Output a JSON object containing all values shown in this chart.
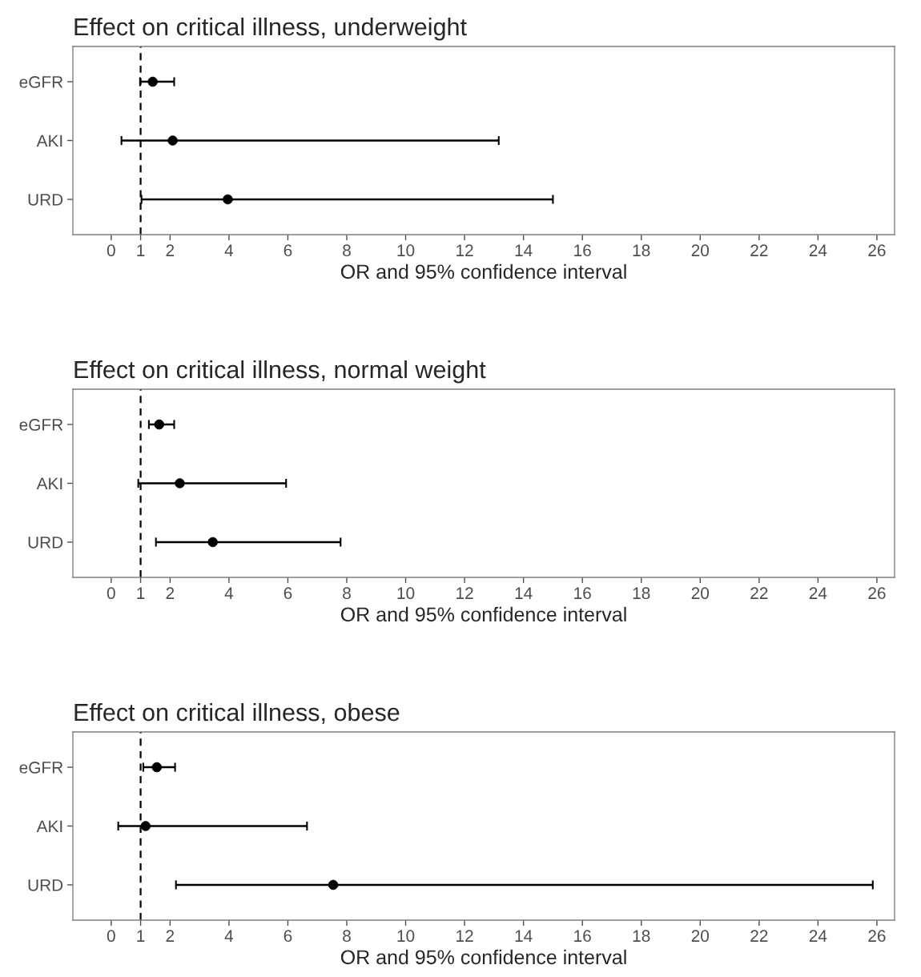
{
  "chart_data": [
    {
      "type": "scatter",
      "orientation": "horizontal",
      "title": "Effect on critical illness, underweight",
      "xlabel": "OR and 95% confidence interval",
      "categories": [
        "eGFR",
        "AKI",
        "URD"
      ],
      "values": [
        1.41,
        2.09,
        3.96
      ],
      "errors": [
        [
          0.98,
          2.14
        ],
        [
          0.35,
          13.16
        ],
        [
          1.03,
          15.0
        ]
      ],
      "color": "#000000",
      "marker": "circle",
      "xlim": [
        -1.3,
        26.6
      ],
      "xticks": [
        0,
        1,
        2,
        4,
        6,
        8,
        10,
        12,
        14,
        16,
        18,
        20,
        22,
        24,
        26
      ],
      "ref_lines": [
        {
          "axis": "x",
          "value": 1,
          "line_style": "dashed",
          "color": "#000000"
        }
      ],
      "grid": false
    },
    {
      "type": "scatter",
      "orientation": "horizontal",
      "title": "Effect on critical illness, normal weight",
      "xlabel": "OR and 95% confidence interval",
      "categories": [
        "eGFR",
        "AKI",
        "URD"
      ],
      "values": [
        1.63,
        2.33,
        3.45
      ],
      "errors": [
        [
          1.28,
          2.14
        ],
        [
          0.92,
          5.94
        ],
        [
          1.52,
          7.79
        ]
      ],
      "color": "#000000",
      "marker": "circle",
      "xlim": [
        -1.3,
        26.6
      ],
      "xticks": [
        0,
        1,
        2,
        4,
        6,
        8,
        10,
        12,
        14,
        16,
        18,
        20,
        22,
        24,
        26
      ],
      "ref_lines": [
        {
          "axis": "x",
          "value": 1,
          "line_style": "dashed",
          "color": "#000000"
        }
      ],
      "grid": false
    },
    {
      "type": "scatter",
      "orientation": "horizontal",
      "title": "Effect on critical illness, obese",
      "xlabel": "OR and 95% confidence interval",
      "categories": [
        "eGFR",
        "AKI",
        "URD"
      ],
      "values": [
        1.55,
        1.17,
        7.54
      ],
      "errors": [
        [
          1.09,
          2.17
        ],
        [
          0.24,
          6.65
        ],
        [
          2.2,
          25.86
        ]
      ],
      "color": "#000000",
      "marker": "circle",
      "xlim": [
        -1.3,
        26.6
      ],
      "xticks": [
        0,
        1,
        2,
        4,
        6,
        8,
        10,
        12,
        14,
        16,
        18,
        20,
        22,
        24,
        26
      ],
      "ref_lines": [
        {
          "axis": "x",
          "value": 1,
          "line_style": "dashed",
          "color": "#000000"
        }
      ],
      "grid": false
    }
  ]
}
